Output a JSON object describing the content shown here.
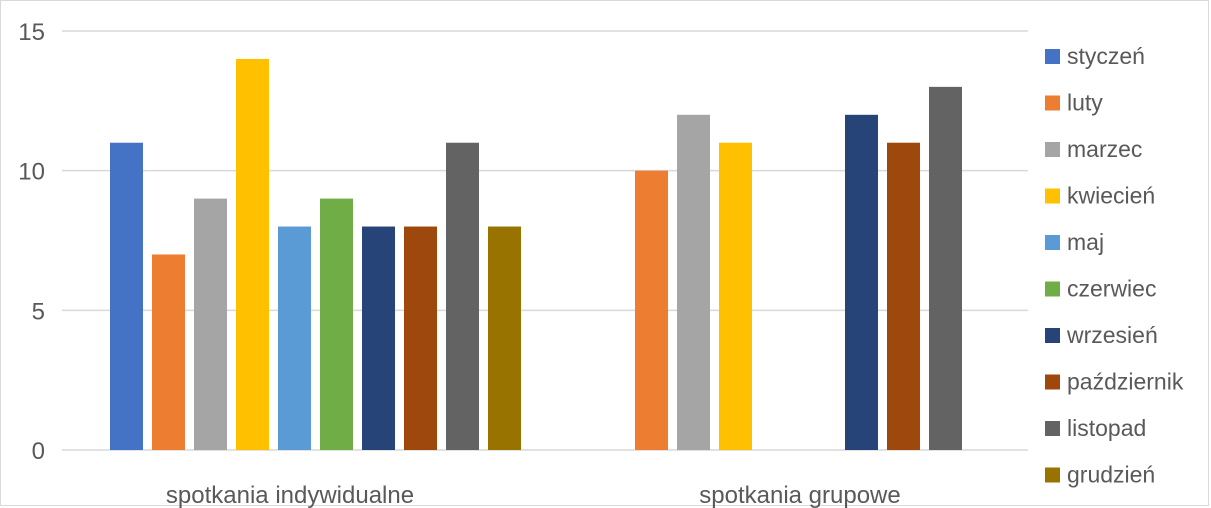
{
  "chart_data": {
    "type": "bar",
    "title": "",
    "xlabel": "",
    "ylabel": "",
    "ylim": [
      0,
      15
    ],
    "yticks": [
      0,
      5,
      10,
      15
    ],
    "grid": true,
    "legend_position": "right",
    "categories": [
      "spotkania indywidualne",
      "spotkania grupowe"
    ],
    "series": [
      {
        "name": "styczeń",
        "color": "#4472C4",
        "values": [
          11,
          null
        ]
      },
      {
        "name": "luty",
        "color": "#ED7D31",
        "values": [
          7,
          10
        ]
      },
      {
        "name": "marzec",
        "color": "#A5A5A5",
        "values": [
          9,
          12
        ]
      },
      {
        "name": "kwiecień",
        "color": "#FFC000",
        "values": [
          14,
          11
        ]
      },
      {
        "name": "maj",
        "color": "#5B9BD5",
        "values": [
          8,
          null
        ]
      },
      {
        "name": "czerwiec",
        "color": "#70AD47",
        "values": [
          9,
          null
        ]
      },
      {
        "name": "wrzesień",
        "color": "#264478",
        "values": [
          8,
          12
        ]
      },
      {
        "name": "październik",
        "color": "#9E480E",
        "values": [
          8,
          11
        ]
      },
      {
        "name": "listopad",
        "color": "#636363",
        "values": [
          11,
          13
        ]
      },
      {
        "name": "grudzień",
        "color": "#997300",
        "values": [
          8,
          null
        ]
      }
    ]
  }
}
